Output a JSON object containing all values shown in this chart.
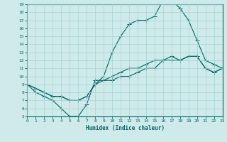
{
  "xlabel": "Humidex (Indice chaleur)",
  "xlim": [
    0,
    23
  ],
  "ylim": [
    5,
    19
  ],
  "yticks": [
    5,
    6,
    7,
    8,
    9,
    10,
    11,
    12,
    13,
    14,
    15,
    16,
    17,
    18,
    19
  ],
  "xticks": [
    0,
    1,
    2,
    3,
    4,
    5,
    6,
    7,
    8,
    9,
    10,
    11,
    12,
    13,
    14,
    15,
    16,
    17,
    18,
    19,
    20,
    21,
    22,
    23
  ],
  "bg_color": "#ceeaea",
  "grid_color": "#a8d4d4",
  "line_color": "#006666",
  "line1_x": [
    0,
    1,
    2,
    3,
    4,
    5,
    6,
    7,
    8,
    9,
    10,
    11,
    12,
    13,
    14,
    15,
    16,
    17,
    18,
    19,
    20,
    21,
    22,
    23
  ],
  "line1_y": [
    9,
    8.5,
    8,
    7.5,
    7.5,
    7,
    7,
    7.5,
    9,
    9.5,
    10,
    10.5,
    11,
    11,
    11.5,
    12,
    12,
    12.5,
    12,
    12.5,
    12.5,
    11,
    10.5,
    11
  ],
  "line2_x": [
    0,
    1,
    2,
    3,
    4,
    5,
    6,
    7,
    8,
    9,
    10,
    11,
    12,
    13,
    14,
    15,
    16,
    17,
    18,
    19,
    20,
    21,
    22,
    23
  ],
  "line2_y": [
    9,
    8.5,
    8,
    7.5,
    7.5,
    7,
    7,
    7.5,
    9,
    10,
    13,
    15,
    16.5,
    17,
    17,
    17.5,
    19.5,
    19.5,
    18.5,
    17,
    14.5,
    12,
    11.5,
    11
  ],
  "line3_x": [
    0,
    1,
    2,
    3,
    4,
    5,
    6,
    7,
    8,
    9,
    10,
    11,
    12,
    13,
    14,
    15,
    16,
    17,
    18,
    19,
    20,
    21,
    22,
    23
  ],
  "line3_y": [
    9,
    8,
    7.5,
    7,
    6,
    5,
    5,
    6.5,
    9.5,
    9.5,
    9.5,
    10,
    10,
    10.5,
    11,
    11,
    12,
    12,
    12,
    12.5,
    12.5,
    11,
    10.5,
    11
  ],
  "marker": "+",
  "marker_size": 3,
  "line_width": 0.8
}
